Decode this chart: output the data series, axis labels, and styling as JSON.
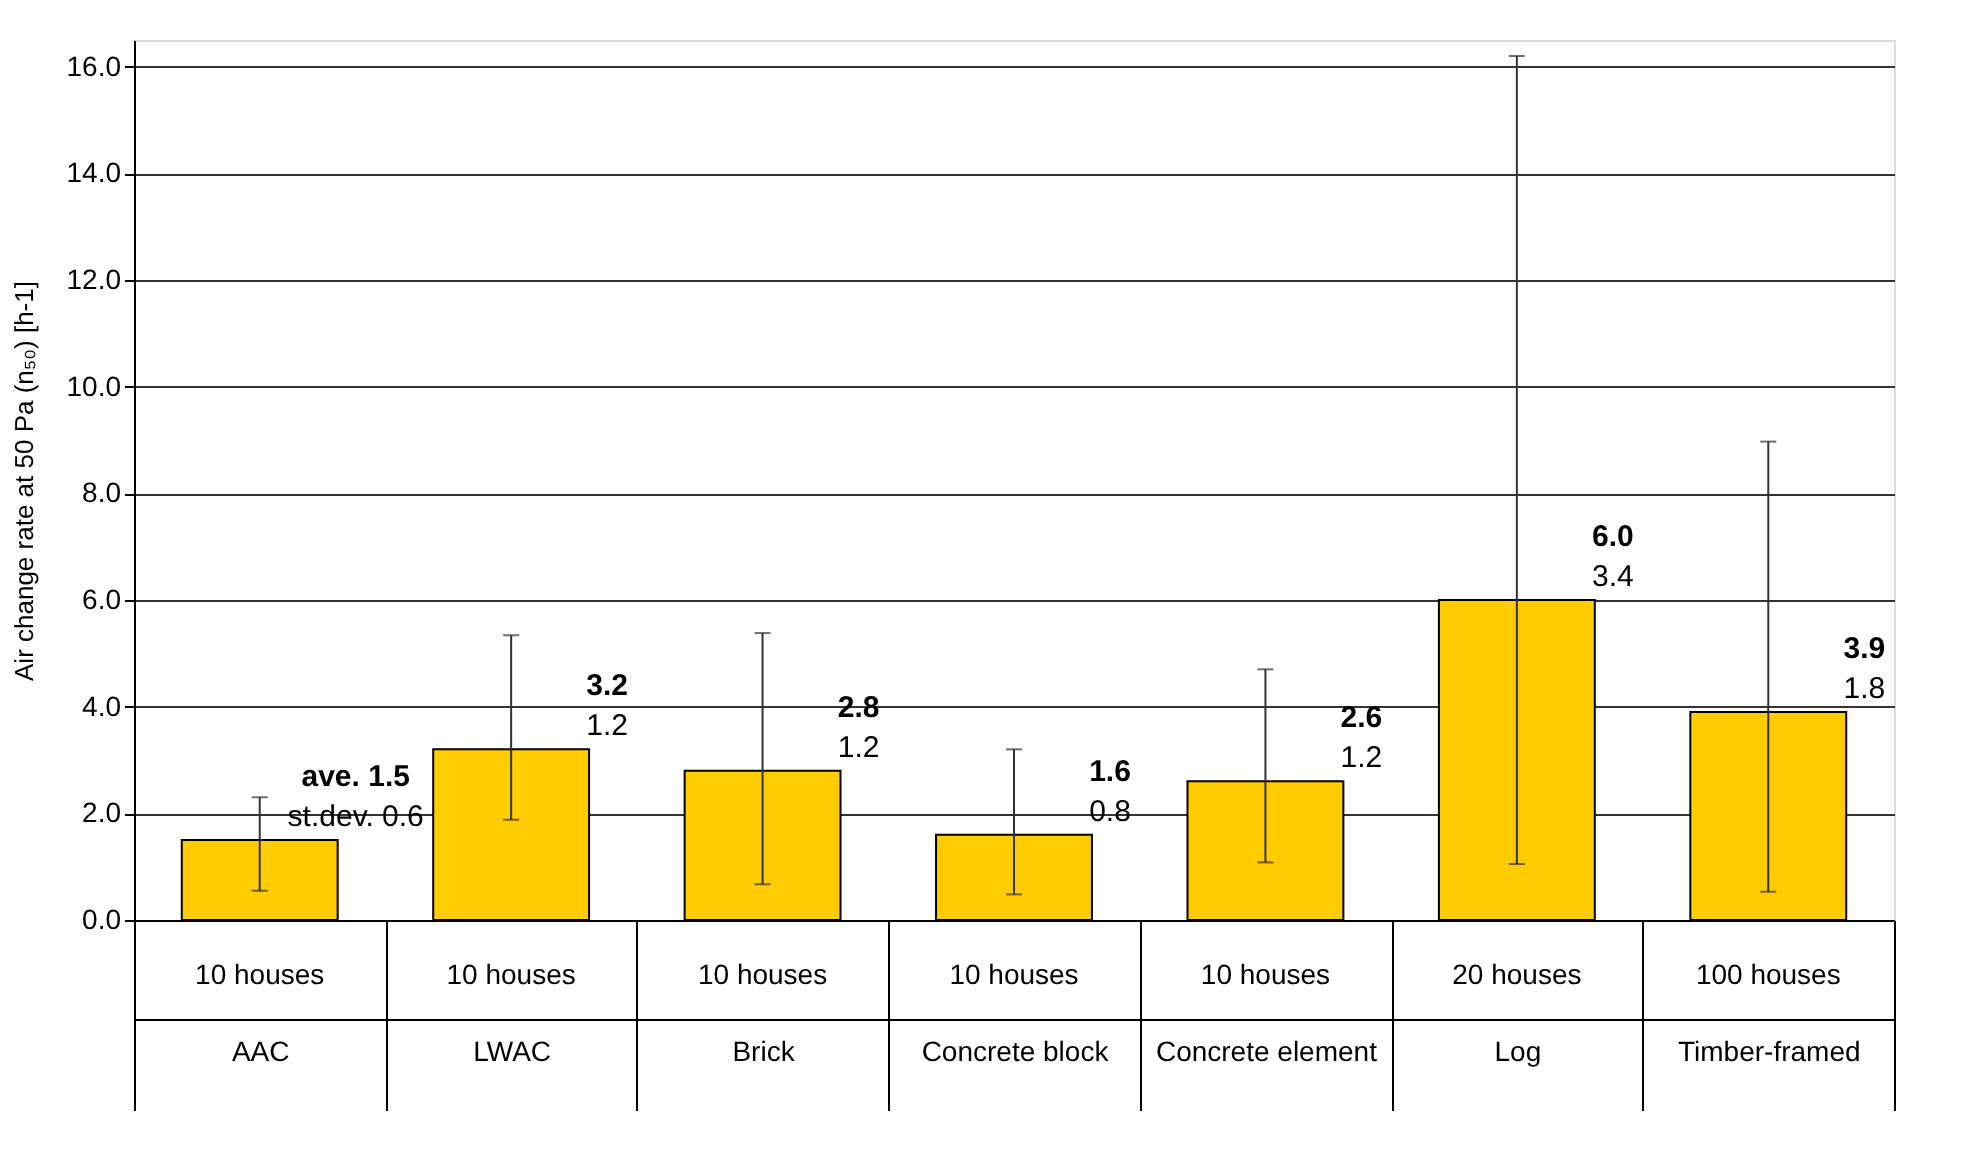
{
  "chart_data": {
    "type": "bar",
    "ylabel": "Air change rate at 50 Pa (n₅₀) [h-1]",
    "categories": [
      "AAC",
      "LWAC",
      "Brick",
      "Concrete block",
      "Concrete element",
      "Log",
      "Timber-framed"
    ],
    "values": [
      1.5,
      3.2,
      2.8,
      1.6,
      2.6,
      6.0,
      3.9
    ],
    "value_labels": [
      "ave. 1.5",
      "3.2",
      "2.8",
      "1.6",
      "2.6",
      "6.0",
      "3.9"
    ],
    "errors": [
      [
        0.55,
        2.3
      ],
      [
        1.88,
        5.34
      ],
      [
        0.67,
        5.38
      ],
      [
        0.48,
        3.2
      ],
      [
        1.08,
        4.7
      ],
      [
        1.05,
        16.2
      ],
      [
        0.53,
        8.97
      ]
    ],
    "color": "#ffcc00",
    "ylim": [
      0,
      16.5
    ],
    "yticks": [
      {
        "value": 0,
        "label": "0.0"
      },
      {
        "value": 2,
        "label": "2.0"
      },
      {
        "value": 4,
        "label": "4.0"
      },
      {
        "value": 6,
        "label": "6.0"
      },
      {
        "value": 8,
        "label": "8.0"
      },
      {
        "value": 10,
        "label": "10.0"
      },
      {
        "value": 12,
        "label": "12.0"
      },
      {
        "value": 14,
        "label": "14.0"
      },
      {
        "value": 16,
        "label": "16.0"
      }
    ],
    "grid": "y",
    "annotations": [
      {
        "text": "st.dev. 0.6",
        "x": "AAC",
        "y": 1.5
      },
      {
        "text": "1.2",
        "x": "LWAC",
        "y": 3.2
      },
      {
        "text": "1.2",
        "x": "Brick",
        "y": 2.8
      },
      {
        "text": "0.8",
        "x": "Concrete block",
        "y": 1.6
      },
      {
        "text": "1.2",
        "x": "Concrete element",
        "y": 2.6
      },
      {
        "text": "3.4",
        "x": "Log",
        "y": 6.0
      },
      {
        "text": "1.8",
        "x": "Timber-framed",
        "y": 3.9
      },
      "10 houses",
      "10 houses",
      "10 houses",
      "10 houses",
      "10 houses",
      "20 houses",
      "100 houses"
    ]
  }
}
